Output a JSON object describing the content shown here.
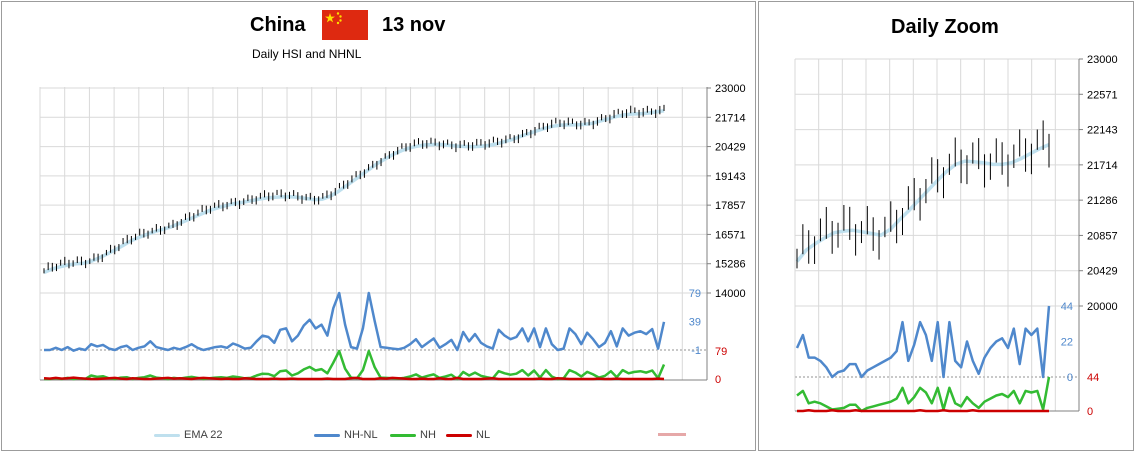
{
  "main_title": "China",
  "date_label": "13 nov",
  "subtitle": "Daily HSI and NHNL",
  "zoom_title": "Daily Zoom",
  "flag_icon": "china-flag-icon",
  "colors": {
    "ema": "#bfe0ee",
    "nhnl": "#4f88cc",
    "nh": "#33bb33",
    "nl": "#cc0000",
    "price": "#000000",
    "baseline": "#e6a8a8"
  },
  "legend": [
    {
      "label": "EMA 22",
      "color": "#bfe0ee"
    },
    {
      "label": "NH-NL",
      "color": "#4f88cc"
    },
    {
      "label": "NH",
      "color": "#33bb33"
    },
    {
      "label": "NL",
      "color": "#cc0000"
    }
  ],
  "chart_data": [
    {
      "type": "line",
      "title": "Daily HSI and NHNL",
      "price_axis": {
        "ticks": [
          "23000",
          "21714",
          "20429",
          "19143",
          "17857",
          "16571",
          "15286",
          "14000"
        ],
        "ylim": [
          14000,
          23000
        ]
      },
      "nhnl_axis": {
        "ticks": [
          "79",
          "39",
          "-1"
        ]
      },
      "nh_axis": {
        "ticks": [
          "79",
          "0"
        ]
      },
      "grid": true,
      "legend_position": "bottom",
      "series": [
        {
          "name": "EMA 22",
          "values": [
            14900,
            15050,
            15150,
            15230,
            15280,
            15310,
            15400,
            15550,
            15720,
            15900,
            16100,
            16300,
            16450,
            16580,
            16700,
            16800,
            16900,
            17050,
            17200,
            17350,
            17500,
            17650,
            17750,
            17850,
            17930,
            17980,
            18050,
            18120,
            18170,
            18200,
            18220,
            18230,
            18200,
            18150,
            18100,
            18120,
            18250,
            18450,
            18700,
            18950,
            19200,
            19450,
            19700,
            19900,
            20100,
            20250,
            20370,
            20450,
            20500,
            20520,
            20520,
            20480,
            20450,
            20430,
            20420,
            20440,
            20480,
            20550,
            20650,
            20750,
            20880,
            21000,
            21120,
            21230,
            21320,
            21370,
            21380,
            21380,
            21400,
            21450,
            21550,
            21650,
            21750,
            21820,
            21860,
            21870,
            21900,
            21950,
            22000
          ]
        },
        {
          "name": "NH-NL",
          "values": [
            0,
            0,
            3,
            0,
            4,
            -1,
            2,
            0,
            8,
            5,
            7,
            2,
            0,
            4,
            6,
            0,
            3,
            5,
            12,
            4,
            2,
            0,
            3,
            1,
            4,
            8,
            3,
            0,
            2,
            4,
            5,
            3,
            9,
            6,
            2,
            3,
            12,
            20,
            18,
            10,
            28,
            30,
            12,
            20,
            34,
            42,
            30,
            35,
            20,
            58,
            79,
            35,
            4,
            2,
            30,
            79,
            40,
            4,
            3,
            2,
            1,
            3,
            8,
            15,
            4,
            10,
            16,
            3,
            8,
            14,
            0,
            25,
            12,
            22,
            10,
            5,
            2,
            28,
            20,
            15,
            18,
            30,
            12,
            30,
            4,
            30,
            8,
            0,
            2,
            30,
            22,
            8,
            24,
            15,
            4,
            10,
            26,
            5,
            30,
            20,
            24,
            26,
            22,
            29,
            2,
            39
          ]
        },
        {
          "name": "NH",
          "values": [
            0,
            0,
            2,
            0,
            3,
            0,
            2,
            0,
            10,
            6,
            8,
            2,
            0,
            4,
            5,
            0,
            3,
            5,
            10,
            4,
            2,
            0,
            3,
            1,
            4,
            6,
            3,
            0,
            2,
            4,
            5,
            3,
            7,
            5,
            2,
            3,
            10,
            15,
            14,
            8,
            22,
            24,
            10,
            16,
            27,
            34,
            24,
            28,
            16,
            46,
            79,
            29,
            4,
            2,
            25,
            79,
            33,
            4,
            3,
            2,
            1,
            3,
            7,
            13,
            4,
            9,
            13,
            3,
            7,
            12,
            0,
            20,
            10,
            18,
            9,
            5,
            2,
            22,
            16,
            12,
            15,
            25,
            10,
            24,
            4,
            25,
            7,
            0,
            2,
            25,
            18,
            7,
            20,
            13,
            4,
            9,
            22,
            5,
            25,
            16,
            20,
            22,
            18,
            24,
            2,
            41
          ]
        },
        {
          "name": "NL",
          "values": [
            2,
            1,
            3,
            1,
            2,
            4,
            2,
            1,
            0,
            0,
            1,
            2,
            3,
            1,
            0,
            2,
            1,
            0,
            0,
            1,
            2,
            3,
            1,
            2,
            1,
            0,
            2,
            3,
            2,
            1,
            0,
            1,
            0,
            0,
            2,
            1,
            0,
            0,
            0,
            1,
            0,
            0,
            1,
            0,
            0,
            0,
            0,
            0,
            1,
            0,
            0,
            0,
            2,
            3,
            0,
            0,
            0,
            2,
            1,
            3,
            2,
            1,
            0,
            0,
            1,
            0,
            0,
            2,
            0,
            0,
            3,
            0,
            0,
            0,
            0,
            1,
            2,
            0,
            0,
            0,
            0,
            0,
            0,
            0,
            1,
            0,
            0,
            2,
            1,
            0,
            0,
            0,
            0,
            0,
            1,
            0,
            0,
            1,
            0,
            0,
            0,
            0,
            0,
            0,
            1,
            0
          ]
        }
      ]
    },
    {
      "type": "line",
      "title": "Daily Zoom",
      "price_axis": {
        "ticks": [
          "23000",
          "22571",
          "22143",
          "21714",
          "21286",
          "20857",
          "20429",
          "20000"
        ],
        "ylim": [
          20000,
          23000
        ]
      },
      "nhnl_axis": {
        "ticks": [
          "44",
          "22",
          "0"
        ]
      },
      "nh_axis": {
        "ticks": [
          "44",
          "0"
        ]
      },
      "grid": true,
      "series": [
        {
          "name": "EMA 22",
          "values": [
            20540,
            20680,
            20760,
            20830,
            20890,
            20910,
            20920,
            20900,
            20880,
            20860,
            20930,
            21050,
            21160,
            21280,
            21400,
            21520,
            21630,
            21720,
            21760,
            21750,
            21740,
            21720,
            21720,
            21740,
            21790,
            21850,
            21910,
            21960
          ]
        },
        {
          "name": "NH-NL",
          "values": [
            18,
            26,
            12,
            12,
            10,
            6,
            0,
            3,
            4,
            8,
            8,
            0,
            4,
            6,
            8,
            10,
            12,
            16,
            34,
            10,
            20,
            34,
            26,
            10,
            34,
            0,
            34,
            10,
            6,
            22,
            10,
            2,
            12,
            18,
            22,
            24,
            18,
            30,
            8,
            30,
            26,
            30,
            0,
            44
          ]
        },
        {
          "name": "NH",
          "values": [
            20,
            26,
            10,
            12,
            10,
            6,
            2,
            3,
            4,
            8,
            8,
            0,
            4,
            6,
            8,
            10,
            12,
            16,
            30,
            10,
            18,
            30,
            24,
            10,
            30,
            2,
            30,
            10,
            6,
            18,
            10,
            4,
            12,
            16,
            20,
            22,
            18,
            26,
            10,
            26,
            24,
            26,
            2,
            44
          ]
        },
        {
          "name": "NL",
          "values": [
            0,
            0,
            1,
            0,
            0,
            0,
            1,
            0,
            0,
            0,
            1,
            0,
            0,
            0,
            0,
            0,
            0,
            0,
            0,
            0,
            0,
            1,
            0,
            0,
            0,
            1,
            0,
            0,
            0,
            0,
            1,
            0,
            0,
            0,
            0,
            0,
            0,
            0,
            0,
            0,
            0,
            0,
            0,
            0
          ]
        }
      ]
    }
  ]
}
